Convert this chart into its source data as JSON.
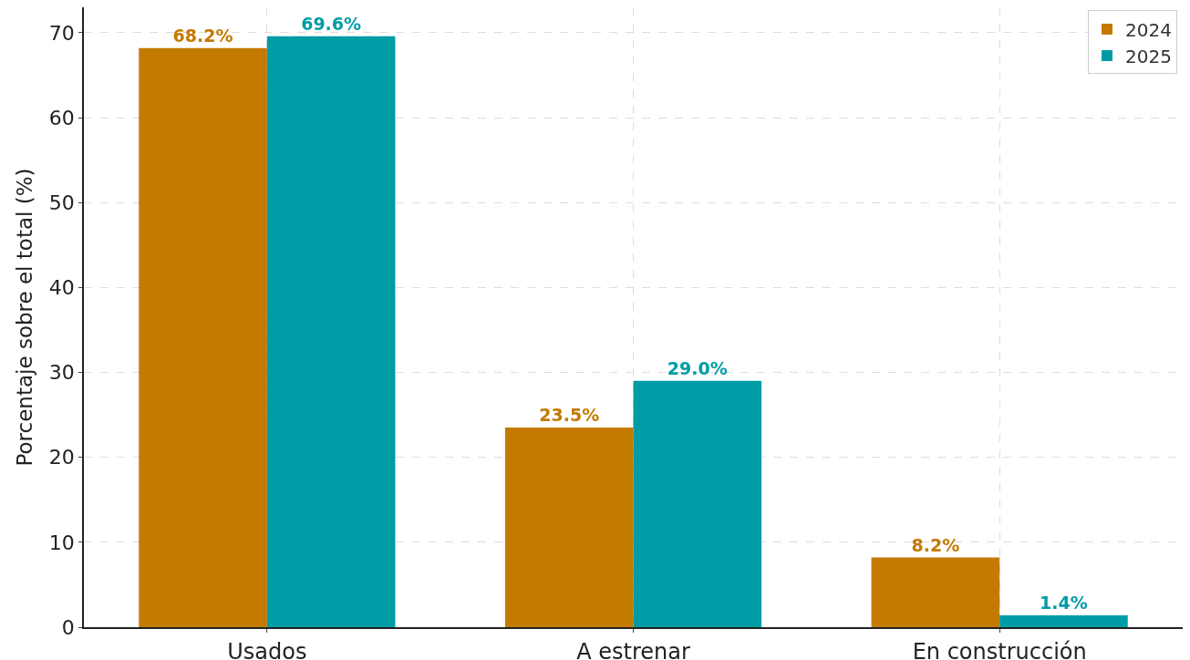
{
  "chart_data": {
    "type": "bar",
    "ylabel": "Porcentaje sobre el total (%)",
    "categories": [
      "Usados",
      "A estrenar",
      "En construcción"
    ],
    "series": [
      {
        "name": "2024",
        "color": "#c47a00",
        "values": [
          68.2,
          23.5,
          8.2
        ],
        "value_labels": [
          "68.2%",
          "23.5%",
          "8.2%"
        ]
      },
      {
        "name": "2025",
        "color": "#009ca6",
        "values": [
          69.6,
          29.0,
          1.4
        ],
        "value_labels": [
          "69.6%",
          "29.0%",
          "1.4%"
        ]
      }
    ],
    "ylim": [
      0,
      73
    ],
    "yticks": [
      0,
      10,
      20,
      30,
      40,
      50,
      60,
      70
    ],
    "grid": true,
    "legend": "top right"
  }
}
